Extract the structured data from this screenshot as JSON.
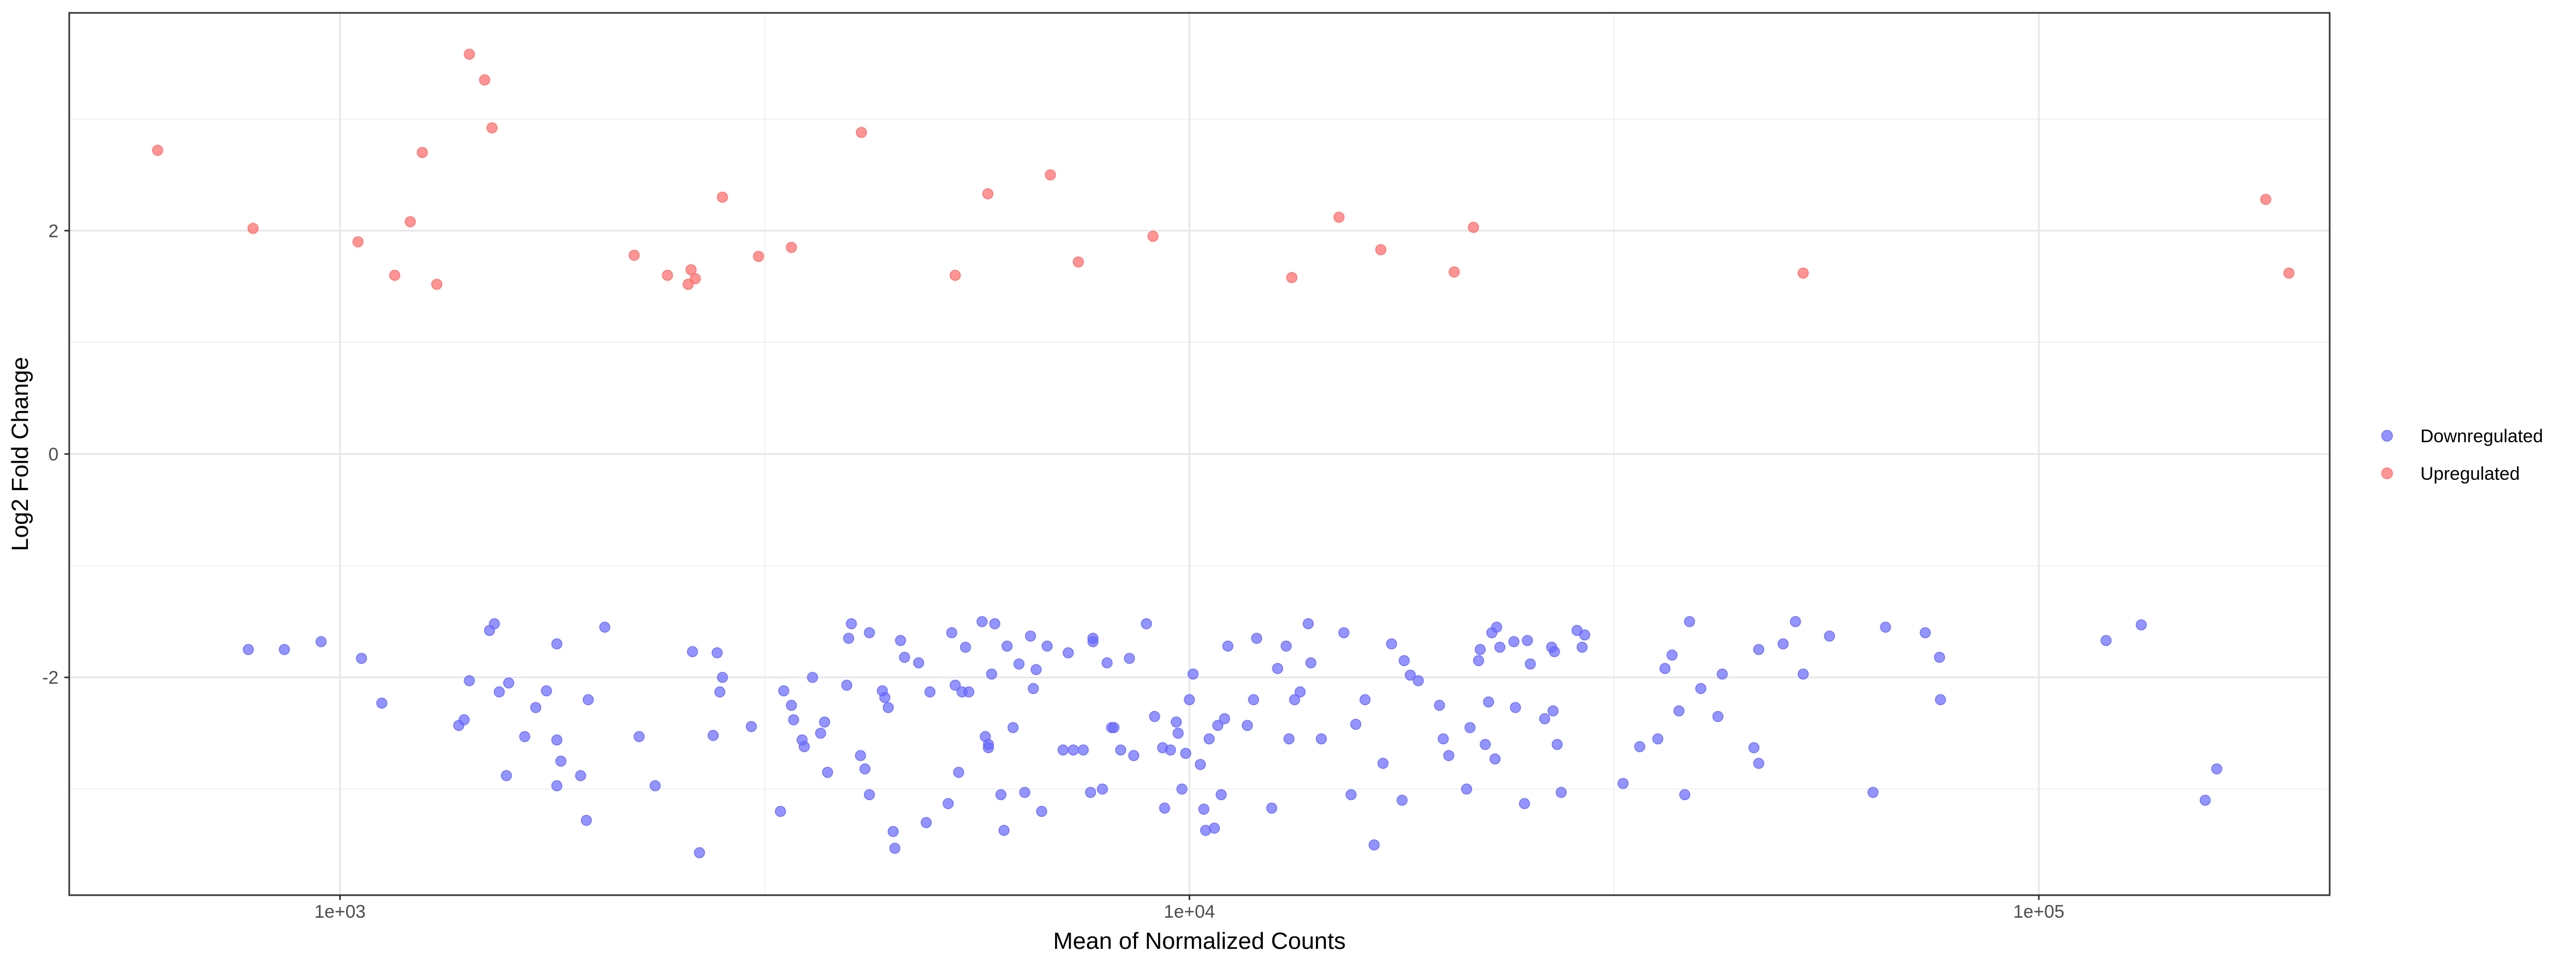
{
  "chart_data": {
    "type": "scatter",
    "title": "",
    "xlabel": "Mean of Normalized Counts",
    "ylabel": "Log2 Fold Change",
    "x_scale": "log10",
    "xlim": [
      480,
      220000
    ],
    "ylim": [
      -3.95,
      3.95
    ],
    "x_major_ticks": [
      1000,
      10000,
      100000
    ],
    "x_tick_labels": [
      "1e+03",
      "1e+04",
      "1e+05"
    ],
    "y_major_ticks": [
      -2,
      0,
      2
    ],
    "y_tick_labels": [
      "-2",
      "0",
      "2"
    ],
    "grid": true,
    "legend_position": "right",
    "series": [
      {
        "name": "Downregulated",
        "color": "#6666ff",
        "points": [
          [
            780,
            -1.75
          ],
          [
            860,
            -1.75
          ],
          [
            950,
            -1.68
          ],
          [
            1060,
            -1.83
          ],
          [
            1120,
            -2.23
          ],
          [
            1380,
            -2.43
          ],
          [
            1400,
            -2.38
          ],
          [
            1420,
            -2.03
          ],
          [
            1500,
            -1.58
          ],
          [
            1520,
            -1.52
          ],
          [
            1540,
            -2.13
          ],
          [
            1570,
            -2.88
          ],
          [
            1580,
            -2.05
          ],
          [
            1650,
            -2.53
          ],
          [
            1700,
            -2.27
          ],
          [
            1750,
            -2.12
          ],
          [
            1800,
            -1.7
          ],
          [
            1800,
            -2.56
          ],
          [
            1800,
            -2.97
          ],
          [
            1820,
            -2.75
          ],
          [
            1920,
            -2.88
          ],
          [
            1950,
            -3.28
          ],
          [
            1960,
            -2.2
          ],
          [
            2050,
            -1.55
          ],
          [
            2250,
            -2.53
          ],
          [
            2350,
            -2.97
          ],
          [
            2600,
            -1.77
          ],
          [
            2650,
            -3.57
          ],
          [
            2750,
            -2.52
          ],
          [
            2780,
            -1.78
          ],
          [
            2800,
            -2.13
          ],
          [
            2820,
            -2.0
          ],
          [
            3050,
            -2.44
          ],
          [
            3300,
            -3.2
          ],
          [
            3330,
            -2.12
          ],
          [
            3400,
            -2.25
          ],
          [
            3420,
            -2.38
          ],
          [
            3500,
            -2.56
          ],
          [
            3520,
            -2.62
          ],
          [
            3600,
            -2.0
          ],
          [
            3680,
            -2.5
          ],
          [
            3720,
            -2.4
          ],
          [
            3750,
            -2.85
          ],
          [
            3950,
            -2.07
          ],
          [
            3970,
            -1.65
          ],
          [
            4000,
            -1.52
          ],
          [
            4100,
            -2.7
          ],
          [
            4150,
            -2.82
          ],
          [
            4200,
            -1.6
          ],
          [
            4200,
            -3.05
          ],
          [
            4350,
            -2.12
          ],
          [
            4380,
            -2.18
          ],
          [
            4420,
            -2.27
          ],
          [
            4480,
            -3.38
          ],
          [
            4500,
            -3.53
          ],
          [
            4570,
            -1.67
          ],
          [
            4620,
            -1.82
          ],
          [
            4800,
            -1.87
          ],
          [
            4900,
            -3.3
          ],
          [
            4950,
            -2.13
          ],
          [
            5200,
            -3.13
          ],
          [
            5250,
            -1.6
          ],
          [
            5300,
            -2.07
          ],
          [
            5350,
            -2.85
          ],
          [
            5400,
            -2.13
          ],
          [
            5450,
            -1.73
          ],
          [
            5500,
            -2.13
          ],
          [
            5700,
            -1.5
          ],
          [
            5750,
            -2.53
          ],
          [
            5800,
            -2.63
          ],
          [
            5800,
            -2.6
          ],
          [
            5850,
            -1.97
          ],
          [
            5900,
            -1.52
          ],
          [
            6000,
            -3.05
          ],
          [
            6050,
            -3.37
          ],
          [
            6100,
            -1.72
          ],
          [
            6200,
            -2.45
          ],
          [
            6300,
            -1.88
          ],
          [
            6400,
            -3.03
          ],
          [
            6500,
            -1.63
          ],
          [
            6550,
            -2.1
          ],
          [
            6600,
            -1.93
          ],
          [
            6700,
            -3.2
          ],
          [
            6800,
            -1.72
          ],
          [
            7100,
            -2.65
          ],
          [
            7200,
            -1.78
          ],
          [
            7300,
            -2.65
          ],
          [
            7500,
            -2.65
          ],
          [
            7650,
            -3.03
          ],
          [
            7700,
            -1.65
          ],
          [
            7700,
            -1.68
          ],
          [
            7900,
            -3.0
          ],
          [
            8000,
            -1.87
          ],
          [
            8100,
            -2.45
          ],
          [
            8150,
            -2.45
          ],
          [
            8300,
            -2.65
          ],
          [
            8500,
            -1.83
          ],
          [
            8600,
            -2.7
          ],
          [
            8900,
            -1.52
          ],
          [
            9100,
            -2.35
          ],
          [
            9300,
            -2.63
          ],
          [
            9350,
            -3.17
          ],
          [
            9500,
            -2.65
          ],
          [
            9650,
            -2.4
          ],
          [
            9700,
            -2.5
          ],
          [
            9800,
            -3.0
          ],
          [
            9900,
            -2.68
          ],
          [
            10000,
            -2.2
          ],
          [
            10100,
            -1.97
          ],
          [
            10300,
            -2.78
          ],
          [
            10400,
            -3.18
          ],
          [
            10450,
            -3.37
          ],
          [
            10550,
            -2.55
          ],
          [
            10700,
            -3.35
          ],
          [
            10800,
            -2.43
          ],
          [
            10900,
            -3.05
          ],
          [
            11000,
            -2.37
          ],
          [
            11100,
            -1.72
          ],
          [
            11700,
            -2.43
          ],
          [
            11900,
            -2.2
          ],
          [
            12000,
            -1.65
          ],
          [
            12500,
            -3.17
          ],
          [
            12700,
            -1.92
          ],
          [
            13000,
            -1.72
          ],
          [
            13100,
            -2.55
          ],
          [
            13300,
            -2.2
          ],
          [
            13500,
            -2.13
          ],
          [
            13800,
            -1.52
          ],
          [
            13900,
            -1.87
          ],
          [
            14300,
            -2.55
          ],
          [
            15200,
            -1.6
          ],
          [
            15500,
            -3.05
          ],
          [
            15700,
            -2.42
          ],
          [
            16100,
            -2.2
          ],
          [
            16500,
            -3.5
          ],
          [
            16900,
            -2.77
          ],
          [
            17300,
            -1.7
          ],
          [
            17800,
            -3.1
          ],
          [
            17900,
            -1.85
          ],
          [
            18200,
            -1.98
          ],
          [
            18600,
            -2.03
          ],
          [
            19700,
            -2.25
          ],
          [
            19900,
            -2.55
          ],
          [
            20200,
            -2.7
          ],
          [
            21200,
            -3.0
          ],
          [
            21400,
            -2.45
          ],
          [
            21900,
            -1.85
          ],
          [
            22000,
            -1.75
          ],
          [
            22300,
            -2.6
          ],
          [
            22500,
            -2.22
          ],
          [
            22700,
            -1.6
          ],
          [
            22900,
            -2.73
          ],
          [
            23000,
            -1.55
          ],
          [
            23200,
            -1.73
          ],
          [
            24100,
            -1.68
          ],
          [
            24200,
            -2.27
          ],
          [
            24800,
            -3.13
          ],
          [
            25000,
            -1.67
          ],
          [
            25200,
            -1.88
          ],
          [
            26200,
            -2.37
          ],
          [
            26700,
            -1.73
          ],
          [
            26800,
            -2.3
          ],
          [
            26900,
            -1.77
          ],
          [
            27100,
            -2.6
          ],
          [
            27400,
            -3.03
          ],
          [
            28600,
            -1.58
          ],
          [
            29000,
            -1.73
          ],
          [
            29200,
            -1.62
          ],
          [
            32400,
            -2.95
          ],
          [
            33900,
            -2.62
          ],
          [
            35600,
            -2.55
          ],
          [
            36300,
            -1.92
          ],
          [
            37000,
            -1.8
          ],
          [
            37700,
            -2.3
          ],
          [
            38300,
            -3.05
          ],
          [
            38800,
            -1.5
          ],
          [
            40000,
            -2.1
          ],
          [
            41900,
            -2.35
          ],
          [
            42400,
            -1.97
          ],
          [
            46200,
            -2.63
          ],
          [
            46800,
            -2.77
          ],
          [
            46800,
            -1.75
          ],
          [
            50000,
            -1.7
          ],
          [
            51700,
            -1.5
          ],
          [
            52800,
            -1.97
          ],
          [
            56700,
            -1.63
          ],
          [
            63800,
            -3.03
          ],
          [
            66000,
            -1.55
          ],
          [
            73500,
            -1.6
          ],
          [
            76400,
            -1.82
          ],
          [
            76600,
            -2.2
          ],
          [
            120000,
            -1.67
          ],
          [
            132000,
            -1.53
          ],
          [
            157000,
            -3.1
          ],
          [
            162000,
            -2.82
          ]
        ]
      },
      {
        "name": "Upregulated",
        "color": "#ff6666",
        "points": [
          [
            610,
            2.72
          ],
          [
            790,
            2.02
          ],
          [
            1050,
            1.9
          ],
          [
            1160,
            1.6
          ],
          [
            1210,
            2.08
          ],
          [
            1250,
            2.7
          ],
          [
            1300,
            1.52
          ],
          [
            1420,
            3.58
          ],
          [
            1480,
            3.35
          ],
          [
            1510,
            2.92
          ],
          [
            2220,
            1.78
          ],
          [
            2430,
            1.6
          ],
          [
            2570,
            1.52
          ],
          [
            2590,
            1.65
          ],
          [
            2620,
            1.57
          ],
          [
            2820,
            2.3
          ],
          [
            3110,
            1.77
          ],
          [
            3400,
            1.85
          ],
          [
            4110,
            2.88
          ],
          [
            5300,
            1.6
          ],
          [
            5790,
            2.33
          ],
          [
            6860,
            2.5
          ],
          [
            7400,
            1.72
          ],
          [
            9060,
            1.95
          ],
          [
            13200,
            1.58
          ],
          [
            15000,
            2.12
          ],
          [
            16800,
            1.83
          ],
          [
            20500,
            1.63
          ],
          [
            21600,
            2.03
          ],
          [
            52800,
            1.62
          ],
          [
            185000,
            2.28
          ],
          [
            197000,
            1.62
          ]
        ]
      }
    ]
  }
}
